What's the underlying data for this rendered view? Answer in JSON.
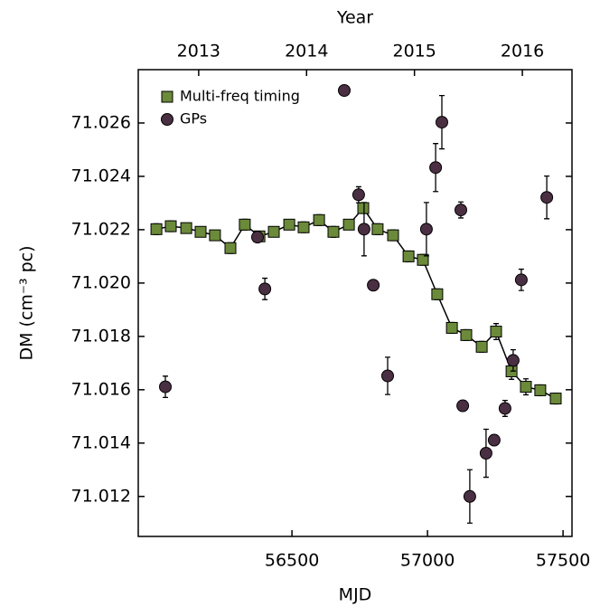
{
  "chart_data": {
    "type": "scatter",
    "x_label": "MJD",
    "y_label": "DM (cm⁻³ pc)",
    "x2_label": "Year",
    "xlim": [
      55933,
      57533
    ],
    "xticks": [
      56500,
      57000,
      57500
    ],
    "x2lim": [
      2012.44,
      2016.46
    ],
    "x2ticks": [
      2013,
      2014,
      2015,
      2016
    ],
    "ylim": [
      71.0105,
      71.028
    ],
    "yticks": [
      71.012,
      71.014,
      71.016,
      71.018,
      {
        "value": 71.02,
        "label": "71.020"
      },
      71.022,
      71.024,
      71.026
    ],
    "legend": "upper left",
    "series": [
      {
        "name": "Multi-freq timing",
        "color": "#6b8a3a",
        "marker": "square",
        "connected": true,
        "x": [
          56000,
          56053,
          56110,
          56163,
          56216,
          56273,
          56326,
          56380,
          56433,
          56490,
          56543,
          56600,
          56653,
          56710,
          56763,
          56816,
          56873,
          56930,
          56983,
          57036,
          57090,
          57143,
          57200,
          57253,
          57310,
          57363,
          57416,
          57473
        ],
        "values": [
          71.02202,
          71.02213,
          71.02206,
          71.02192,
          71.02179,
          71.02131,
          71.02219,
          71.02175,
          71.02192,
          71.02219,
          71.02209,
          71.02236,
          71.02192,
          71.02219,
          71.02281,
          71.02202,
          71.02179,
          71.021,
          71.02087,
          71.01958,
          71.01832,
          71.01805,
          71.01761,
          71.01818,
          71.01669,
          71.01611,
          71.01598,
          71.01567
        ],
        "errors": [
          0.0002,
          0.0002,
          0.0001,
          0.0001,
          0.0001,
          0.0002,
          0.0002,
          0.0001,
          0.0001,
          0.0001,
          0.0002,
          0.0002,
          0.0002,
          0.0001,
          0.0002,
          0.0002,
          0.0002,
          0.0002,
          0.0002,
          0.0002,
          0.0002,
          0.0002,
          0.0002,
          0.0003,
          0.0003,
          0.0003,
          0.0002,
          0.0002
        ]
      },
      {
        "name": "GPs",
        "color": "#4a2f42",
        "marker": "circle",
        "connected": false,
        "x": [
          56033,
          56373,
          56400,
          56693,
          56746,
          56766,
          56800,
          56853,
          56996,
          57030,
          57053,
          57123,
          57130,
          57156,
          57216,
          57246,
          57286,
          57316,
          57346,
          57440
        ],
        "values": [
          71.01611,
          71.02172,
          71.01978,
          71.02722,
          71.02331,
          71.02202,
          71.01992,
          71.01652,
          71.02202,
          71.02433,
          71.02603,
          71.02274,
          71.0154,
          71.012,
          71.01362,
          71.01411,
          71.0153,
          71.0171,
          71.02012,
          71.02321
        ],
        "errors": [
          0.0004,
          0.0001,
          0.0004,
          0.0001,
          0.0003,
          0.001,
          0.0001,
          0.0007,
          0.001,
          0.0009,
          0.001,
          0.0003,
          0.0002,
          0.001,
          0.0009,
          0.0002,
          0.0003,
          0.0004,
          0.0004,
          0.0008
        ]
      }
    ]
  }
}
